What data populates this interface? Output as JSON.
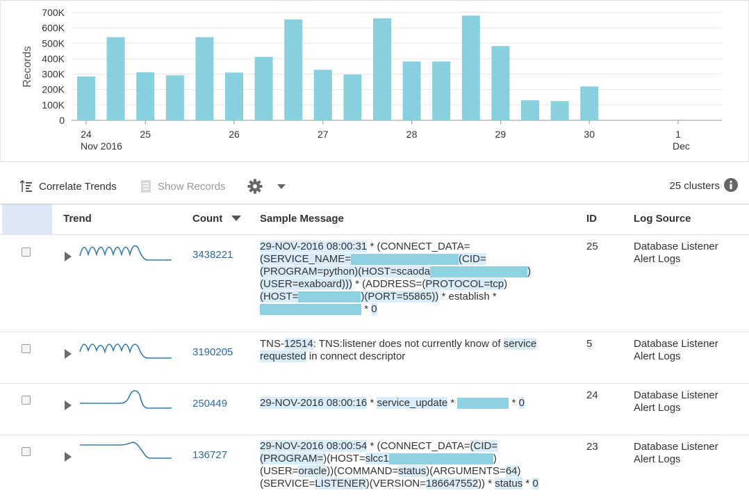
{
  "chart_data": {
    "type": "bar",
    "ylabel": "Records",
    "yticks": [
      "0",
      "100K",
      "200K",
      "300K",
      "400K",
      "500K",
      "600K",
      "700K"
    ],
    "ylim": [
      0,
      700000
    ],
    "values": [
      285000,
      540000,
      312000,
      292000,
      540000,
      310000,
      412000,
      655000,
      328000,
      297000,
      662000,
      382000,
      382000,
      680000,
      482000,
      130000,
      125000,
      220000
    ],
    "xticks": [
      {
        "label": "24",
        "sub": "Nov 2016",
        "slot": 0
      },
      {
        "label": "25",
        "sub": "",
        "slot": 2
      },
      {
        "label": "26",
        "sub": "",
        "slot": 5
      },
      {
        "label": "27",
        "sub": "",
        "slot": 8
      },
      {
        "label": "28",
        "sub": "",
        "slot": 11
      },
      {
        "label": "29",
        "sub": "",
        "slot": 14
      },
      {
        "label": "30",
        "sub": "",
        "slot": 17
      },
      {
        "label": "1",
        "sub": "Dec",
        "slot": 20
      }
    ],
    "bar_color": "#88d0df",
    "grid": true
  },
  "toolbar": {
    "correlate_label": "Correlate Trends",
    "show_records_label": "Show Records",
    "cluster_count": "25 clusters"
  },
  "table": {
    "headers": {
      "trend": "Trend",
      "count": "Count",
      "message": "Sample Message",
      "id": "ID",
      "source": "Log Source"
    },
    "rows": [
      {
        "count": "3438221",
        "id": "25",
        "source": "Database Listener Alert Logs",
        "message": "29-NOV-2016 08:00:31 * (CONNECT_DATA=(SERVICE_NAME=(CID=(PROGRAM=python)(HOST=scaoda(USER=exaboard))) * (ADDRESS=(PROTOCOL=tcp)(HOST=)(PORT=55865)) * establish * * 0"
      },
      {
        "count": "3190205",
        "id": "5",
        "source": "Database Listener Alert Logs",
        "message": "TNS-12514: TNS:listener does not currently know of service requested in connect descriptor"
      },
      {
        "count": "250449",
        "id": "24",
        "source": "Database Listener Alert Logs",
        "message": "29-NOV-2016 08:00:16 * service_update * * 0"
      },
      {
        "count": "136727",
        "id": "23",
        "source": "Database Listener Alert Logs",
        "message": "29-NOV-2016 08:00:54 * (CONNECT_DATA=(CID=(PROGRAM=)(HOST=slcc1(USER=oracle))(COMMAND=status)(ARGUMENTS=64)(SERVICE=LISTENER)(VERSION=186647552)) * status * 0"
      }
    ]
  }
}
